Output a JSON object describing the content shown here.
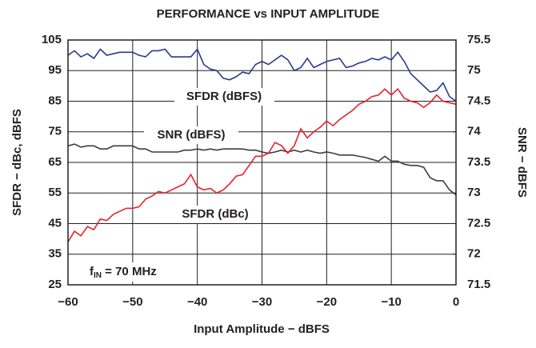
{
  "chart_data": {
    "type": "line",
    "title": "PERFORMANCE vs INPUT AMPLITUDE",
    "x_label": "Input Amplitude − dBFS",
    "y_label": "SFDR − dBc, dBFS",
    "y2_label": "SNR − dBFS",
    "x": [
      -60,
      -59,
      -58,
      -57,
      -56,
      -55,
      -54,
      -53,
      -52,
      -51,
      -50,
      -49,
      -48,
      -47,
      -46,
      -45,
      -44,
      -43,
      -42,
      -41,
      -40,
      -39,
      -38,
      -37,
      -36,
      -35,
      -34,
      -33,
      -32,
      -31,
      -30,
      -29,
      -28,
      -27,
      -26,
      -25,
      -24,
      -23,
      -22,
      -21,
      -20,
      -19,
      -18,
      -17,
      -16,
      -15,
      -14,
      -13,
      -12,
      -11,
      -10,
      -9,
      -8,
      -7,
      -6,
      -5,
      -4,
      -3,
      -2,
      -1,
      0
    ],
    "series": [
      {
        "name": "SFDR (dBFS)",
        "color": "#2b3990",
        "axis": "y",
        "values": [
          100,
          101.5,
          99.5,
          100.5,
          99,
          102,
          100,
          100.5,
          101,
          101,
          101,
          100,
          99.5,
          101.5,
          101.5,
          102,
          99.5,
          99.5,
          99.5,
          99.5,
          102,
          97,
          95.5,
          95,
          92.5,
          92,
          93,
          94.5,
          94,
          97,
          98,
          97,
          98.5,
          100,
          98.5,
          95,
          96,
          99,
          96,
          97,
          98,
          98.5,
          99,
          96,
          96.5,
          97.5,
          98,
          99,
          98.5,
          99.5,
          98.5,
          101,
          98,
          94,
          92,
          90,
          88,
          88.5,
          91,
          86.5,
          85
        ]
      },
      {
        "name": "SNR (dBFS)",
        "color": "#3a3f3f",
        "axis": "y2",
        "values": [
          73.77,
          73.8,
          73.75,
          73.77,
          73.77,
          73.72,
          73.72,
          73.77,
          73.77,
          73.77,
          73.77,
          73.72,
          73.72,
          73.67,
          73.67,
          73.67,
          73.67,
          73.67,
          73.7,
          73.7,
          73.72,
          73.7,
          73.72,
          73.7,
          73.72,
          73.72,
          73.72,
          73.72,
          73.7,
          73.7,
          73.67,
          73.65,
          73.67,
          73.7,
          73.67,
          73.7,
          73.67,
          73.7,
          73.67,
          73.65,
          73.67,
          73.65,
          73.62,
          73.62,
          73.62,
          73.6,
          73.58,
          73.55,
          73.52,
          73.6,
          73.52,
          73.52,
          73.47,
          73.45,
          73.45,
          73.42,
          73.25,
          73.2,
          73.2,
          73.05,
          72.97
        ]
      },
      {
        "name": "SFDR (dBc)",
        "color": "#e8212a",
        "axis": "y",
        "values": [
          39,
          42.5,
          41,
          44,
          43,
          46.5,
          46,
          48,
          49,
          50,
          50,
          50.5,
          53,
          54,
          55.5,
          55,
          56,
          57,
          58,
          61,
          57,
          56,
          56.5,
          55,
          56,
          58,
          60.5,
          61,
          64,
          67,
          67,
          68,
          71.5,
          70.5,
          68,
          70.5,
          76,
          73,
          75,
          76.5,
          78.5,
          77,
          79,
          80.5,
          82,
          84,
          85,
          86.5,
          87,
          89,
          87,
          89,
          86,
          85,
          84.5,
          83,
          84.5,
          87,
          85,
          84.5,
          84
        ]
      }
    ],
    "fin_label": [
      "f",
      "IN",
      " = 70 MHz"
    ],
    "xlim": [
      -60,
      0
    ],
    "xticks": [
      {
        "value": -60,
        "label": "−60"
      },
      {
        "value": -50,
        "label": "−50"
      },
      {
        "value": -40,
        "label": "−40"
      },
      {
        "value": -30,
        "label": "−30"
      },
      {
        "value": -20,
        "label": "−20"
      },
      {
        "value": -10,
        "label": "−10"
      },
      0
    ],
    "ylim": [
      25,
      105
    ],
    "yticks": [
      25,
      35,
      45,
      55,
      65,
      75,
      85,
      95,
      105
    ],
    "y2lim": [
      71.5,
      75.5
    ],
    "y2ticks": [
      71.5,
      72,
      72.5,
      73,
      73.5,
      74,
      74.5,
      75,
      75.5
    ],
    "grid": true
  }
}
